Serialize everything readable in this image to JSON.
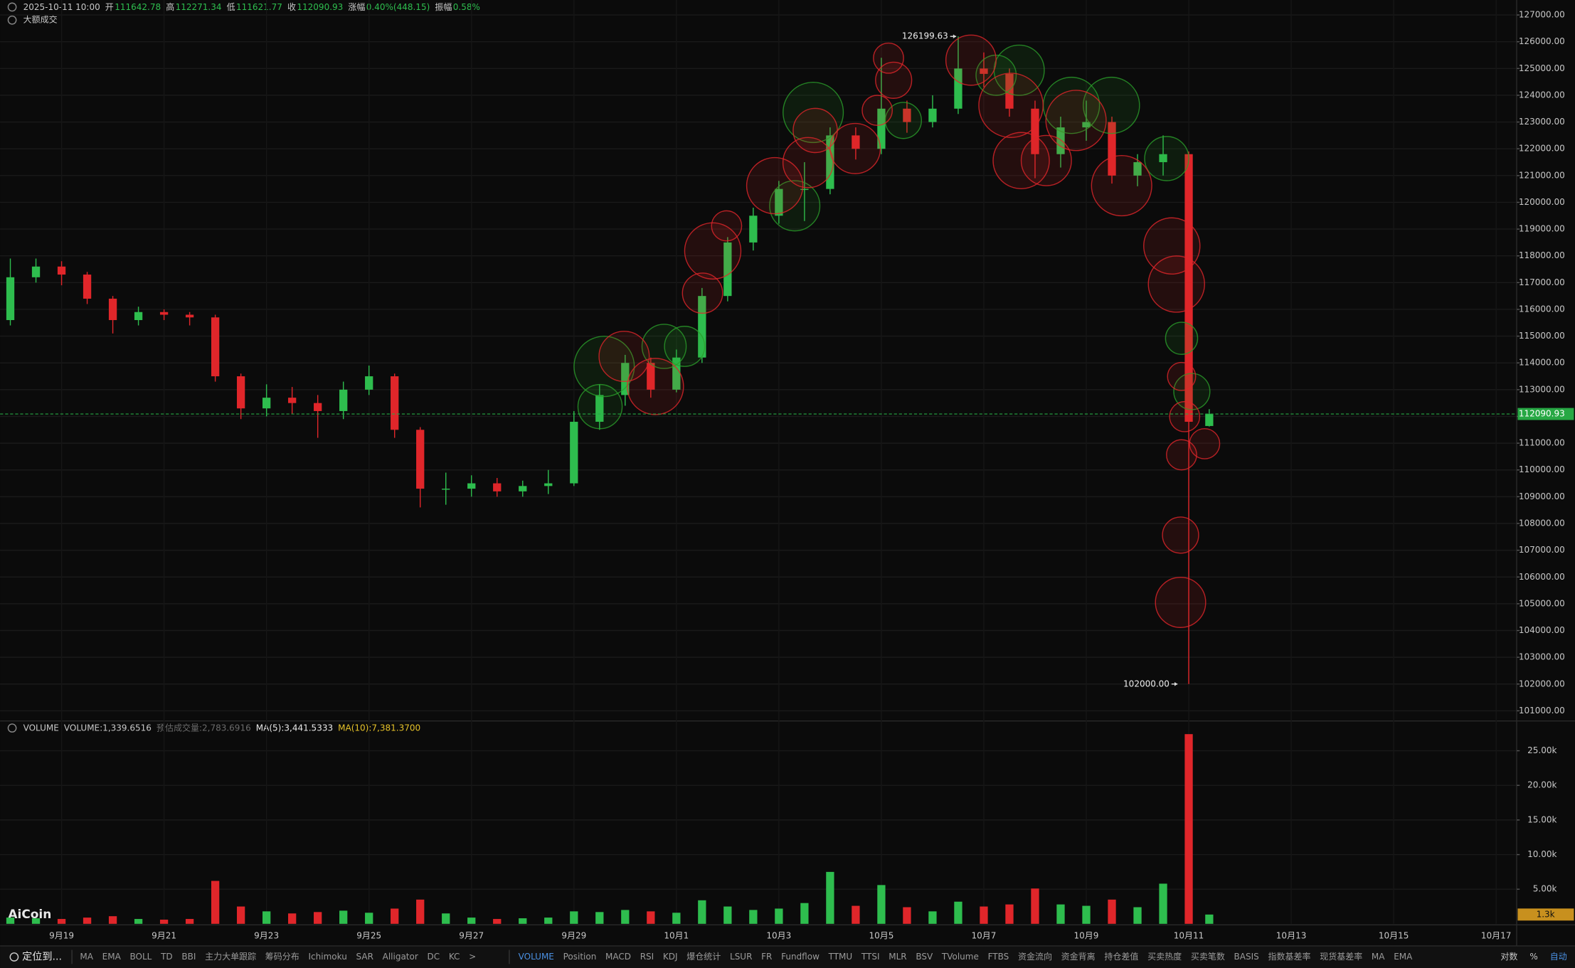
{
  "header": {
    "date": "2025-10-11 10:00",
    "open_label": "开",
    "open": 111642.78,
    "high_label": "高",
    "high": 112271.34,
    "low_label": "低",
    "low": 111621.77,
    "close_label": "收",
    "close": 112090.93,
    "change_label": "涨幅",
    "change": "0.40%(448.15)",
    "amp_label": "振幅",
    "amp": "0.58%",
    "indicator": "大额成交",
    "watermark": "AiCoin"
  },
  "chart_data": [
    {
      "type": "candlestick",
      "x": [
        18.0,
        18.5,
        19.0,
        19.5,
        20.0,
        20.5,
        21.0,
        21.5,
        22.0,
        22.5,
        23.0,
        23.5,
        24.0,
        24.5,
        25.0,
        25.5,
        26.0,
        26.5,
        27.0,
        27.5,
        28.0,
        28.5,
        29.0,
        29.5,
        30.0,
        30.5,
        31.0,
        31.5,
        32.0,
        32.5,
        33.0,
        33.5,
        34.0,
        34.5,
        35.0,
        35.5,
        36.0,
        36.5,
        37.0,
        37.5,
        38.0,
        38.5,
        39.0,
        39.5,
        40.0,
        40.5,
        41.0,
        41.4
      ],
      "open": [
        115600,
        117200,
        117600,
        117300,
        116400,
        115600,
        115900,
        115800,
        115700,
        113500,
        112300,
        112700,
        112500,
        112200,
        113000,
        113500,
        111500,
        109300,
        109300,
        109500,
        109200,
        109400,
        109500,
        111800,
        112800,
        114000,
        113000,
        114200,
        116500,
        118500,
        119500,
        120500,
        120500,
        122500,
        122000,
        123500,
        123000,
        123500,
        125000,
        124800,
        123500,
        121800,
        122800,
        123000,
        121000,
        121500,
        121800,
        111642.78
      ],
      "high": [
        117900,
        117900,
        117800,
        117400,
        116500,
        116100,
        116000,
        115900,
        115800,
        113600,
        113200,
        113100,
        112800,
        113300,
        113900,
        113600,
        111600,
        109900,
        109800,
        109700,
        109600,
        110000,
        112200,
        113200,
        114300,
        114200,
        114500,
        116800,
        118700,
        119800,
        120800,
        121500,
        122800,
        122800,
        125400,
        123800,
        124000,
        126199.63,
        125600,
        125000,
        123800,
        123200,
        123800,
        123200,
        121800,
        122500,
        121900,
        112271.34
      ],
      "low": [
        115400,
        117000,
        116900,
        116200,
        115100,
        115400,
        115600,
        115400,
        113300,
        111900,
        112000,
        112100,
        111200,
        111900,
        112800,
        111200,
        108600,
        108700,
        109000,
        109000,
        109000,
        109100,
        109400,
        111500,
        112400,
        112700,
        112900,
        114000,
        116300,
        118200,
        119200,
        119300,
        120300,
        121600,
        121800,
        122600,
        122800,
        123300,
        124300,
        123200,
        120900,
        121300,
        122300,
        120700,
        120600,
        121000,
        102000,
        111621.77
      ],
      "close": [
        117200,
        117600,
        117300,
        116400,
        115600,
        115900,
        115800,
        115700,
        113500,
        112300,
        112700,
        112500,
        112200,
        113000,
        113500,
        111500,
        109300,
        109300,
        109500,
        109200,
        109400,
        109500,
        111800,
        112800,
        114000,
        113000,
        114200,
        116500,
        118500,
        119500,
        120500,
        120500,
        122500,
        122000,
        123500,
        123000,
        123500,
        125000,
        124800,
        123500,
        121800,
        122800,
        123000,
        121000,
        121500,
        121800,
        111800,
        112090.93
      ],
      "up_color": "#2ebd4e",
      "down_color": "#e0262a",
      "xlim": [
        17.8,
        47.4
      ],
      "ylim": [
        100620,
        127560
      ],
      "yticks": [
        {
          "value": 101000,
          "label": "101000.00"
        },
        {
          "value": 102000,
          "label": "102000.00"
        },
        {
          "value": 103000,
          "label": "103000.00"
        },
        {
          "value": 104000,
          "label": "104000.00"
        },
        {
          "value": 105000,
          "label": "105000.00"
        },
        {
          "value": 106000,
          "label": "106000.00"
        },
        {
          "value": 107000,
          "label": "107000.00"
        },
        {
          "value": 108000,
          "label": "108000.00"
        },
        {
          "value": 109000,
          "label": "109000.00"
        },
        {
          "value": 110000,
          "label": "110000.00"
        },
        {
          "value": 111000,
          "label": "111000.00"
        },
        {
          "value": 112000,
          "label": "112000.00"
        },
        {
          "value": 113000,
          "label": "113000.00"
        },
        {
          "value": 114000,
          "label": "114000.00"
        },
        {
          "value": 115000,
          "label": "115000.00"
        },
        {
          "value": 116000,
          "label": "116000.00"
        },
        {
          "value": 117000,
          "label": "117000.00"
        },
        {
          "value": 118000,
          "label": "118000.00"
        },
        {
          "value": 119000,
          "label": "119000.00"
        },
        {
          "value": 120000,
          "label": "120000.00"
        },
        {
          "value": 121000,
          "label": "121000.00"
        },
        {
          "value": 122000,
          "label": "122000.00"
        },
        {
          "value": 123000,
          "label": "123000.00"
        },
        {
          "value": 124000,
          "label": "124000.00"
        },
        {
          "value": 125000,
          "label": "125000.00"
        },
        {
          "value": 126000,
          "label": "126000.00"
        },
        {
          "value": 127000,
          "label": "127000.00"
        }
      ],
      "grid": true,
      "current": 112090.93,
      "current_color": "#27a844",
      "annotations": [
        {
          "x": 36.5,
          "value": 126199.63
        },
        {
          "x": 40.82,
          "value": 102000,
          "label": "102000.00"
        }
      ],
      "bubbles": [
        {
          "color": "#2a9d2a",
          "x": [
            33.67,
            33.31,
            29.59,
            30.76,
            29.51,
            31.16,
            35.43,
            37.24,
            38.71,
            39.49,
            40.57,
            40.86,
            41.06,
            37.69
          ],
          "y": [
            123360,
            119871,
            113868,
            114618,
            112367,
            114618,
            123060,
            124749,
            123623,
            123623,
            121635,
            114919,
            112930,
            124936
          ],
          "sizes": [
            30,
            25,
            30,
            22,
            22,
            20,
            18,
            20,
            28,
            28,
            22,
            16,
            18,
            25
          ]
        },
        {
          "color": "#e0262a",
          "x": [
            33.71,
            33.57,
            32.92,
            31.71,
            31.51,
            31.98,
            29.98,
            30.59,
            35.14,
            35.24,
            34.49,
            36.75,
            37.53,
            37.73,
            38.22,
            38.8,
            39.69,
            40.67,
            40.76,
            40.86,
            40.92,
            41.31,
            40.86,
            40.84,
            40.84,
            34.92
          ],
          "y": [
            122685,
            121485,
            120622,
            118183,
            116607,
            119121,
            114243,
            113118,
            125387,
            124561,
            122010,
            125312,
            123623,
            121560,
            121560,
            123060,
            120622,
            118370,
            116945,
            113493,
            111992,
            110979,
            110566,
            107565,
            105051,
            123436
          ],
          "sizes": [
            22,
            25,
            28,
            28,
            20,
            15,
            25,
            28,
            15,
            18,
            25,
            25,
            32,
            28,
            25,
            30,
            30,
            28,
            28,
            14,
            15,
            15,
            15,
            18,
            25,
            15
          ]
        }
      ]
    },
    {
      "type": "bar",
      "title": "VOLUME",
      "legend": [
        "VOLUME:1,339.6516",
        "预估成交量:2,783.6916",
        "MA(5):3,441.5333",
        "MA(10):7,381.3700"
      ],
      "legend_colors": [
        "#c8c8c8",
        "#6b6b6b",
        "#e8e8e8",
        "#e6c229"
      ],
      "x": [
        18.0,
        18.5,
        19.0,
        19.5,
        20.0,
        20.5,
        21.0,
        21.5,
        22.0,
        22.5,
        23.0,
        23.5,
        24.0,
        24.5,
        25.0,
        25.5,
        26.0,
        26.5,
        27.0,
        27.5,
        28.0,
        28.5,
        29.0,
        29.5,
        30.0,
        30.5,
        31.0,
        31.5,
        32.0,
        32.5,
        33.0,
        33.5,
        34.0,
        34.5,
        35.0,
        35.5,
        36.0,
        36.5,
        37.0,
        37.5,
        38.0,
        38.5,
        39.0,
        39.5,
        40.0,
        40.5,
        41.0,
        41.4
      ],
      "values": [
        900,
        800,
        700,
        900,
        1100,
        700,
        600,
        700,
        6200,
        2500,
        1800,
        1500,
        1700,
        1900,
        1600,
        2200,
        3500,
        1500,
        900,
        700,
        800,
        900,
        1800,
        1700,
        2000,
        1800,
        1600,
        3400,
        2500,
        2000,
        2200,
        3000,
        7500,
        2600,
        5600,
        2400,
        1800,
        3200,
        2500,
        2800,
        5100,
        2800,
        2600,
        3500,
        2400,
        5800,
        27400,
        1339.6516
      ],
      "xlim": [
        17.8,
        47.4
      ],
      "ylim": [
        0,
        29300
      ],
      "yticks": [
        {
          "value": 5000,
          "label": "5.00k"
        },
        {
          "value": 10000,
          "label": "10.00k"
        },
        {
          "value": 15000,
          "label": "15.00k"
        },
        {
          "value": 20000,
          "label": "20.00k"
        },
        {
          "value": 25000,
          "label": "25.00k"
        }
      ],
      "xticks": [
        {
          "value": 19,
          "label": "9月19"
        },
        {
          "value": 21,
          "label": "9月21"
        },
        {
          "value": 23,
          "label": "9月23"
        },
        {
          "value": 25,
          "label": "9月25"
        },
        {
          "value": 27,
          "label": "9月27"
        },
        {
          "value": 29,
          "label": "9月29"
        },
        {
          "value": 31,
          "label": "10月1"
        },
        {
          "value": 33,
          "label": "10月3"
        },
        {
          "value": 35,
          "label": "10月5"
        },
        {
          "value": 37,
          "label": "10月7"
        },
        {
          "value": 39,
          "label": "10月9"
        },
        {
          "value": 41,
          "label": "10月11"
        },
        {
          "value": 43,
          "label": "10月13"
        },
        {
          "value": 45,
          "label": "10月15"
        },
        {
          "value": 47,
          "label": "10月17"
        }
      ],
      "current": {
        "value": 1339.6516,
        "label": "1.3k"
      },
      "current_color": "#c8901e"
    }
  ],
  "toolbar": {
    "locate": "定位到...",
    "left": [
      "MA",
      "EMA",
      "BOLL",
      "TD",
      "BBI",
      "主力大单跟踪",
      "筹码分布",
      "Ichimoku",
      "SAR",
      "Alligator",
      "DC",
      "KC",
      ">"
    ],
    "right": [
      "VOLUME",
      "Position",
      "MACD",
      "RSI",
      "KDJ",
      "爆仓统计",
      "LSUR",
      "FR",
      "Fundflow",
      "TTMU",
      "TTSI",
      "MLR",
      "BSV",
      "TVolume",
      "FTBS",
      "资金流向",
      "资金背离",
      "持仓差值",
      "买卖热度",
      "买卖笔数",
      "BASIS",
      "指数基差率",
      "现货基差率",
      "MA",
      "EMA"
    ],
    "options": [
      "对数",
      "%",
      "自动"
    ]
  }
}
